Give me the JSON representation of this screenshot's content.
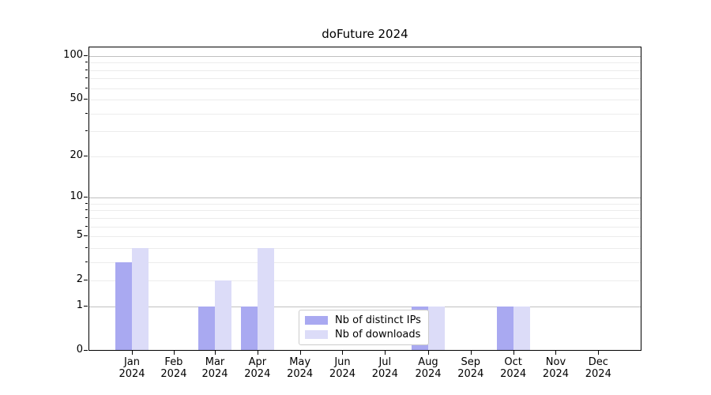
{
  "chart_data": {
    "type": "bar",
    "title": "doFuture 2024",
    "xlabel": "",
    "ylabel": "",
    "year": "2024",
    "categories": [
      "Jan",
      "Feb",
      "Mar",
      "Apr",
      "May",
      "Jun",
      "Jul",
      "Aug",
      "Sep",
      "Oct",
      "Nov",
      "Dec"
    ],
    "series": [
      {
        "name": "Nb of distinct IPs",
        "color": "#a9a9f1",
        "values": [
          3,
          0,
          1,
          1,
          0,
          0,
          0,
          1,
          0,
          1,
          0,
          0
        ]
      },
      {
        "name": "Nb of downloads",
        "color": "#dcdcf8",
        "values": [
          4,
          0,
          2,
          4,
          0,
          0,
          0,
          1,
          0,
          1,
          0,
          0
        ]
      }
    ],
    "yscale": "log1p",
    "ylim": [
      0,
      115
    ],
    "yticks": [
      100,
      50,
      20,
      10,
      5,
      2,
      1,
      0
    ],
    "grid": {
      "major": [
        1,
        10,
        100
      ],
      "minor": [
        2,
        3,
        4,
        5,
        6,
        7,
        8,
        9,
        20,
        30,
        40,
        50,
        60,
        70,
        80,
        90
      ],
      "major_color": "#c0c0c0",
      "minor_color": "#ececec"
    },
    "legend": {
      "position": "lower center",
      "entries": [
        "Nb of distinct IPs",
        "Nb of downloads"
      ]
    }
  }
}
